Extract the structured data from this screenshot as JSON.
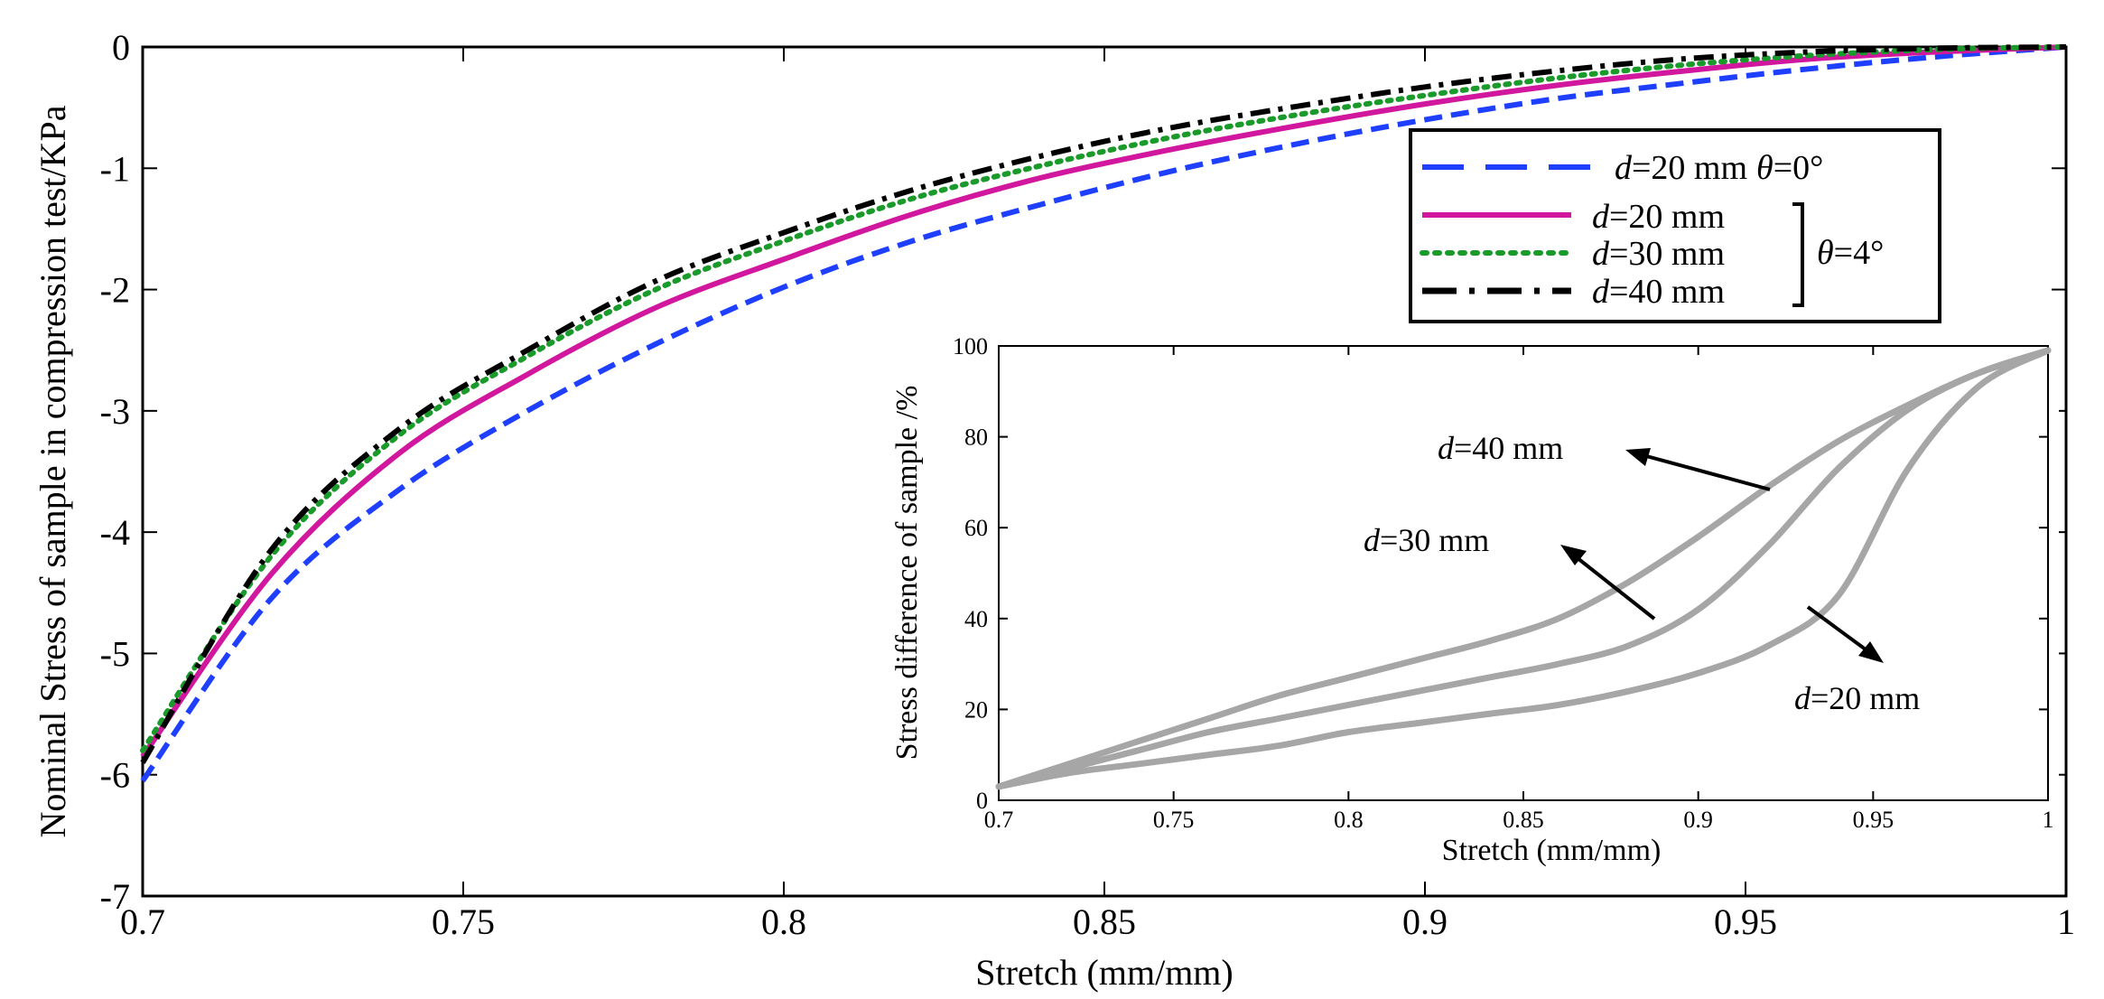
{
  "chart_data": [
    {
      "type": "line",
      "xlabel": "Stretch (mm/mm)",
      "ylabel": "Nominal Stress of sample in compression test/KPa",
      "xlim": [
        0.7,
        1.0
      ],
      "ylim": [
        -7,
        0
      ],
      "xticks": [
        0.7,
        0.75,
        0.8,
        0.85,
        0.9,
        0.95,
        1.0
      ],
      "xtick_labels": [
        "0.7",
        "0.75",
        "0.8",
        "0.85",
        "0.9",
        "0.95",
        "1"
      ],
      "yticks": [
        0,
        -1,
        -2,
        -3,
        -4,
        -5,
        -6,
        -7
      ],
      "ytick_labels": [
        "0",
        "-1",
        "-2",
        "-3",
        "-4",
        "-5",
        "-6",
        "-7"
      ],
      "legend": {
        "placement": "top-right",
        "entries": [
          {
            "d_symbol": "d",
            "text": "=20 mm",
            "theta_symbol": "θ",
            "theta_text": "=0°"
          },
          {
            "d_symbol": "d",
            "text": "=20 mm"
          },
          {
            "d_symbol": "d",
            "text": "=30 mm"
          },
          {
            "d_symbol": "d",
            "text": "=40 mm"
          }
        ],
        "group_theta_symbol": "θ",
        "group_theta_text": "=4°"
      },
      "x": [
        0.7,
        0.72,
        0.74,
        0.76,
        0.78,
        0.8,
        0.82,
        0.84,
        0.86,
        0.88,
        0.9,
        0.92,
        0.94,
        0.96,
        0.98,
        1.0
      ],
      "series": [
        {
          "name": "d=20 mm θ=0°",
          "color": "#1f3fff",
          "dash": "dashed",
          "values": [
            -6.05,
            -4.55,
            -3.65,
            -3.0,
            -2.45,
            -1.98,
            -1.6,
            -1.3,
            -1.03,
            -0.8,
            -0.6,
            -0.43,
            -0.3,
            -0.18,
            -0.08,
            0.0
          ]
        },
        {
          "name": "d=20 mm θ=4°",
          "color": "#d1179d",
          "dash": "solid",
          "values": [
            -5.85,
            -4.35,
            -3.35,
            -2.7,
            -2.15,
            -1.75,
            -1.38,
            -1.08,
            -0.85,
            -0.65,
            -0.47,
            -0.32,
            -0.2,
            -0.1,
            -0.04,
            0.0
          ]
        },
        {
          "name": "d=30 mm θ=4°",
          "color": "#1a9a2a",
          "dash": "dotted",
          "values": [
            -5.8,
            -4.2,
            -3.2,
            -2.55,
            -2.0,
            -1.6,
            -1.25,
            -0.98,
            -0.75,
            -0.56,
            -0.4,
            -0.26,
            -0.15,
            -0.07,
            -0.02,
            0.0
          ]
        },
        {
          "name": "d=40 mm θ=4°",
          "color": "#000000",
          "dash": "dashdot",
          "values": [
            -5.9,
            -4.15,
            -3.15,
            -2.5,
            -1.93,
            -1.53,
            -1.18,
            -0.9,
            -0.67,
            -0.49,
            -0.33,
            -0.2,
            -0.1,
            -0.04,
            -0.01,
            0.0
          ]
        }
      ]
    },
    {
      "type": "line",
      "position": "inset-bottom-right",
      "xlabel": "Stretch (mm/mm)",
      "ylabel": "Stress difference of sample /%",
      "xlim": [
        0.7,
        1.0
      ],
      "ylim": [
        0,
        100
      ],
      "xticks": [
        0.7,
        0.75,
        0.8,
        0.85,
        0.9,
        0.95,
        1.0
      ],
      "xtick_labels": [
        "0.7",
        "0.75",
        "0.8",
        "0.85",
        "0.9",
        "0.95",
        "1"
      ],
      "yticks": [
        0,
        20,
        40,
        60,
        80,
        100
      ],
      "ytick_labels": [
        "0",
        "20",
        "40",
        "60",
        "80",
        "100"
      ],
      "color": "#a6a6a6",
      "annotations": [
        {
          "d_symbol": "d",
          "text": "=40 mm",
          "target": [
            0.88,
            67
          ]
        },
        {
          "d_symbol": "d",
          "text": "=30 mm",
          "target": [
            0.89,
            40
          ]
        },
        {
          "d_symbol": "d",
          "text": "=20 mm",
          "target": [
            0.93,
            40
          ]
        }
      ],
      "x": [
        0.7,
        0.72,
        0.74,
        0.76,
        0.78,
        0.8,
        0.82,
        0.84,
        0.86,
        0.88,
        0.9,
        0.92,
        0.94,
        0.96,
        0.98,
        1.0
      ],
      "series": [
        {
          "name": "d=40 mm",
          "values": [
            3,
            8,
            13,
            18,
            23,
            27,
            31,
            35,
            40,
            48,
            58,
            69,
            79,
            87,
            94,
            99
          ]
        },
        {
          "name": "d=30 mm",
          "values": [
            3,
            7,
            11,
            15,
            18,
            21,
            24,
            27,
            30,
            34,
            42,
            56,
            73,
            86,
            94,
            99
          ]
        },
        {
          "name": "d=20 mm",
          "values": [
            3,
            6,
            8,
            10,
            12,
            15,
            17,
            19,
            21,
            24,
            28,
            34,
            45,
            73,
            91,
            99
          ]
        }
      ]
    }
  ]
}
